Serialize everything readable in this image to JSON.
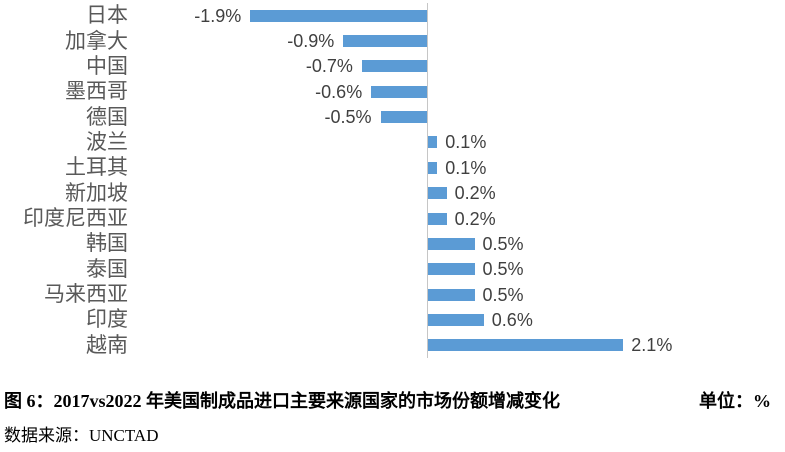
{
  "chart_data": {
    "type": "bar",
    "orientation": "horizontal",
    "title": "图 6：2017vs2022 年美国制成品进口主要来源国家的市场份额增减变化",
    "unit": "%",
    "categories": [
      "日本",
      "加拿大",
      "中国",
      "墨西哥",
      "德国",
      "波兰",
      "土耳其",
      "新加坡",
      "印度尼西亚",
      "韩国",
      "泰国",
      "马来西亚",
      "印度",
      "越南"
    ],
    "values": [
      -1.9,
      -0.9,
      -0.7,
      -0.6,
      -0.5,
      0.1,
      0.1,
      0.2,
      0.2,
      0.5,
      0.5,
      0.5,
      0.6,
      2.1
    ],
    "value_labels": [
      "-1.9%",
      "-0.9%",
      "-0.7%",
      "-0.6%",
      "-0.5%",
      "0.1%",
      "0.1%",
      "0.2%",
      "0.2%",
      "0.5%",
      "0.5%",
      "0.5%",
      "0.6%",
      "2.1%"
    ],
    "legend": "none",
    "axis_tick_labels_visible": false,
    "grid": "off",
    "bar_color": "#5B9BD5",
    "axis_line_color": "#C6C6C6",
    "category_label_color": "#595959",
    "value_label_color": "#404040"
  },
  "caption": {
    "figure_label": "图 6：2017vs2022 年美国制成品进口主要来源国家的市场份额增减变化",
    "unit_label": "单位：%",
    "source": "数据来源：UNCTAD"
  }
}
